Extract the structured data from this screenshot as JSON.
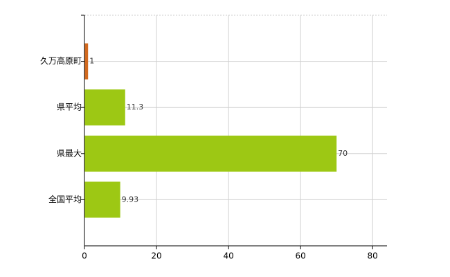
{
  "chart_data": {
    "type": "hbar",
    "categories": [
      "久万高原町",
      "県平均",
      "県最大",
      "全国平均"
    ],
    "values": [
      1,
      11.3,
      70,
      9.93
    ],
    "colors": [
      "#d2691e",
      "#9dc814",
      "#9dc814",
      "#9dc814"
    ],
    "xlim": [
      0,
      84
    ],
    "xticks": [
      0,
      20,
      40,
      60,
      80
    ],
    "grid": true
  }
}
